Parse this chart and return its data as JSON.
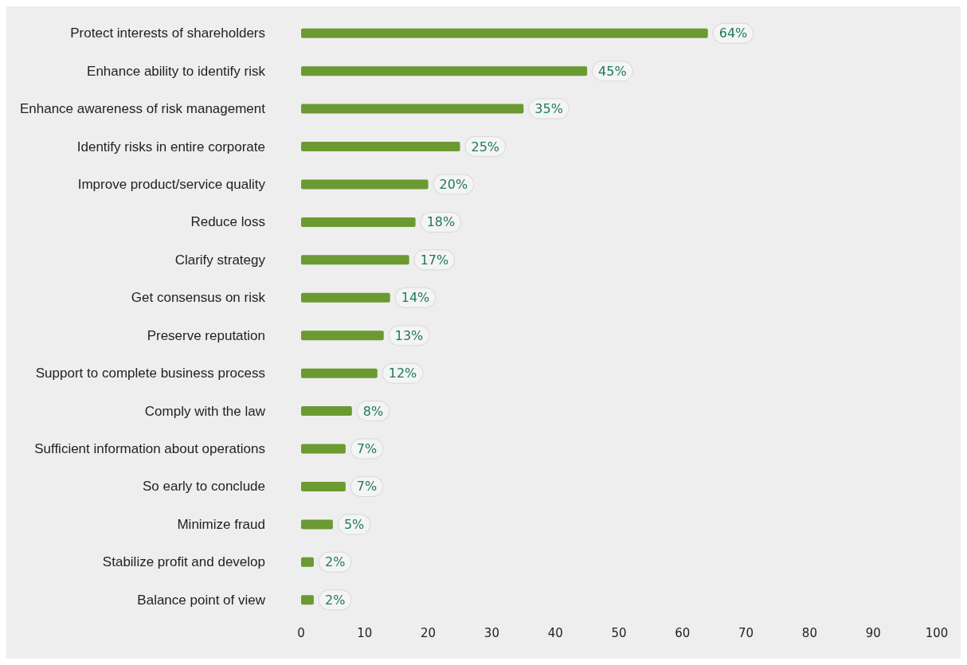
{
  "chart_data": {
    "type": "bar",
    "orientation": "horizontal",
    "categories": [
      "Protect interests of shareholders",
      "Enhance ability to identify risk",
      "Enhance awareness of risk management",
      "Identify risks in entire corporate",
      "Improve product/service quality",
      "Reduce loss",
      "Clarify strategy",
      "Get consensus on risk",
      "Preserve reputation",
      "Support to complete business process",
      "Comply with the law",
      "Sufficient information about operations",
      "So early to conclude",
      "Minimize fraud",
      "Stabilize profit and develop",
      "Balance point of view"
    ],
    "values": [
      64,
      45,
      35,
      25,
      20,
      18,
      17,
      14,
      13,
      12,
      8,
      7,
      7,
      5,
      2,
      2
    ],
    "value_labels": [
      "64%",
      "45%",
      "35%",
      "25%",
      "20%",
      "18%",
      "17%",
      "14%",
      "13%",
      "12%",
      "8%",
      "7%",
      "7%",
      "5%",
      "2%",
      "2%"
    ],
    "color": "#6b9a32",
    "xlim": [
      0,
      100
    ],
    "xticks": [
      0,
      10,
      20,
      30,
      40,
      50,
      60,
      70,
      80,
      90,
      100
    ],
    "grid": false
  }
}
